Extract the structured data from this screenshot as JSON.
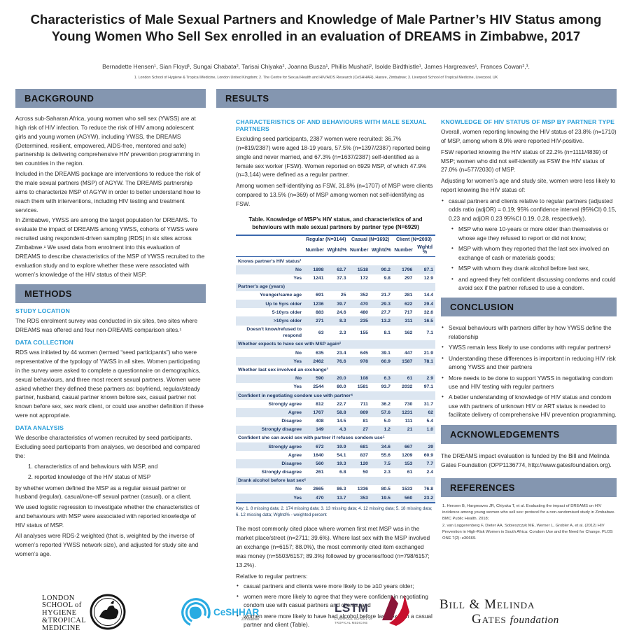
{
  "colors": {
    "section_bar": "#8496B0",
    "accent_heading": "#2C9FD9",
    "table_text": "#1F3864",
    "table_stripe": "#DCE6F1",
    "table_border": "#3A67AD",
    "lstm_red": "#C8102E",
    "ceshhar_blue": "#29ABE2"
  },
  "title": "Characteristics of Male Sexual Partners and Knowledge of Male Partner’s HIV Status among Young Women Who Sell Sex enrolled in an evaluation of DREAMS in Zimbabwe, 2017",
  "authors": "Bernadette Hensen¹, Sian Floyd¹, Sungai Chabata², Tarisai Chiyaka², Joanna Busza¹, Phillis Mushati², Isolde Birdthistle¹, James Hargreaves¹, Frances Cowan²,³.",
  "affiliations": "1. London School of Hygiene  & Tropical Medicine, London United Kingdom; 2. The Centre for Sexual Health and HIV/AIDS Research (CeSHHAR), Harare, Zimbabwe; 3. Liverpool School of Tropical Medicine, Liverpool, UK",
  "background": {
    "heading": "BACKGROUND",
    "paragraphs": [
      "Across sub-Saharan Africa, young women who sell sex (YWSS) are at high risk of HIV infection. To reduce the risk of HIV among adolescent girls and young women (AGYW), including YWSS, the DREAMS (Determined, resilient, empowered, AIDS-free, mentored and safe) partnership is delivering comprehensive HIV prevention programming in ten countries in the region.",
      "Included in the DREAMS package are interventions to reduce the risk of the male sexual partners (MSP) of AGYW. The DREAMS partnership aims to characterize MSP of AGYW in order to better understand how to reach them with interventions, including HIV testing and treatment services.",
      "In Zimbabwe, YWSS are among the target population for DREAMS. To evaluate the impact of DREAMS among YWSS, cohorts of YWSS were recruited using respondent-driven sampling (RDS) in six sites across Zimbabwe.¹ We used data from enrolment into this evaluation of DREAMS to describe characteristics of the MSP of YWSS recruited to the evaluation study and to explore whether these were associated with women’s knowledge of the HIV status of their MSP."
    ]
  },
  "methods": {
    "heading": "METHODS",
    "study_location_label": "STUDY LOCATION",
    "study_location": "The RDS enrolment survey was conducted in six sites, two sites where DREAMS was offered and four non-DREAMS comparison sites.¹",
    "data_collection_label": "DATA COLLECTION",
    "data_collection": "RDS was initiated by 44 women (termed “seed participants”) who were representative of the typology of YWSS in all sites. Women participating in the survey were asked to complete a questionnaire on demographics, sexual behaviours, and three most recent sexual partners. Women were asked whether they defined these partners as: boyfriend, regular/steady partner, husband, casual partner known before sex, casual partner not known before sex, sex work client, or could use another definition if these were not appropriate.",
    "data_analysis_label": "DATA ANALYSIS",
    "data_analysis_intro": "We describe characteristics of women recruited by seed participants. Excluding seed participants from analyses, we described and compared the:",
    "numbered": [
      "1.  characteristics of and behaviours with MSP, and",
      "2.  reported knowledge of the HIV status of MSP"
    ],
    "data_analysis_rest": [
      "by whether women defined the MSP as a regular sexual partner or husband (regular), casual/one-off sexual partner (casual), or a client.",
      "We used logistic regression to investigate whether the characteristics of and behaviours with MSP were associated with reported knowledge of HIV status of MSP.",
      "All analyses were RDS-2 weighted (that is, weighted by the inverse of women’s reported YWSS network size), and adjusted for study site and women’s age."
    ]
  },
  "results": {
    "heading": "RESULTS",
    "characteristics": {
      "heading": "CHARACTERISTICS OF AND BEHAVIOURS WITH MALE SEXUAL PARTNERS",
      "paragraphs": [
        "Excluding seed participants, 2387 women were recruited: 36.7% (n=819/2387) were aged 18-19 years, 57.5% (n=1397/2387) reported being single and never married, and 67.3% (n=1637/2387) self-identified as a female sex worker (FSW). Women reported on 6929 MSP, of which 47.9% (n=3,144) were defined as a regular partner.",
        "Among women self-identifying as FSW, 31.8% (n=1707) of MSP were clients compared to 13.5% (n=369) of MSP among women not self-identifying as FSW."
      ]
    },
    "table": {
      "title": "Table. Knowledge of MSP’s HIV status, and characteristics of and behaviours with male sexual partners by partner type (N=6929)",
      "groups": [
        "Regular (N=3144)",
        "Casual (N=1692)",
        "Client (N=2093)"
      ],
      "cols": [
        "Number",
        "Wghtd%",
        "Number",
        "Wghtd%",
        "Number",
        "Wghtd %"
      ],
      "rows": [
        {
          "t": "cat",
          "label": "Knows partner's HIV status¹"
        },
        {
          "t": "row",
          "label": "No",
          "v": [
            "1898",
            "62.7",
            "1518",
            "90.2",
            "1796",
            "87.1"
          ]
        },
        {
          "t": "row",
          "label": "Yes",
          "v": [
            "1241",
            "37.3",
            "172",
            "9.8",
            "297",
            "12.9"
          ]
        },
        {
          "t": "cat",
          "label": "Partner's age (years)"
        },
        {
          "t": "row",
          "label": "Younger/same age",
          "v": [
            "691",
            "25",
            "352",
            "21.7",
            "281",
            "14.4"
          ]
        },
        {
          "t": "row",
          "label": "Up to 5yrs older",
          "v": [
            "1236",
            "39.7",
            "470",
            "29.3",
            "622",
            "29.4"
          ]
        },
        {
          "t": "row",
          "label": "5-10yrs older",
          "v": [
            "883",
            "24.6",
            "480",
            "27.7",
            "717",
            "32.6"
          ]
        },
        {
          "t": "row",
          "label": ">10yrs older",
          "v": [
            "271",
            "8.3",
            "235",
            "13.2",
            "311",
            "16.5"
          ]
        },
        {
          "t": "row",
          "label": "Doesn't know/refused to respond",
          "v": [
            "63",
            "2.3",
            "155",
            "8.1",
            "162",
            "7.1"
          ]
        },
        {
          "t": "cat",
          "label": "Whether expects to have sex with MSP again²"
        },
        {
          "t": "row",
          "label": "No",
          "v": [
            "635",
            "23.4",
            "645",
            "39.1",
            "447",
            "21.9"
          ]
        },
        {
          "t": "row",
          "label": "Yes",
          "v": [
            "2462",
            "76.6",
            "978",
            "60.9",
            "1587",
            "78.1"
          ]
        },
        {
          "t": "cat",
          "label": "Whether last sex involved an exchange³"
        },
        {
          "t": "row",
          "label": "No",
          "v": [
            "590",
            "20.0",
            "108",
            "6.3",
            "61",
            "2.9"
          ]
        },
        {
          "t": "row",
          "label": "Yes",
          "v": [
            "2544",
            "80.0",
            "1581",
            "93.7",
            "2032",
            "97.1"
          ]
        },
        {
          "t": "cat",
          "label": "Confident in negotiating condom use with partner⁴"
        },
        {
          "t": "row",
          "label": "Strongly agree",
          "v": [
            "812",
            "22.7",
            "711",
            "36.2",
            "730",
            "31.7"
          ]
        },
        {
          "t": "row",
          "label": "Agree",
          "v": [
            "1767",
            "58.8",
            "869",
            "57.6",
            "1231",
            "62"
          ]
        },
        {
          "t": "row",
          "label": "Disagree",
          "v": [
            "408",
            "14.5",
            "81",
            "5.0",
            "111",
            "5.4"
          ]
        },
        {
          "t": "row",
          "label": "Strongly disagree",
          "v": [
            "149",
            "4.3",
            "27",
            "1.2",
            "21",
            "1.0"
          ]
        },
        {
          "t": "cat",
          "label": "Confident she can avoid sex with partner if refuses condom use⁵"
        },
        {
          "t": "row",
          "label": "Strongly agree",
          "v": [
            "672",
            "19.9",
            "681",
            "34.6",
            "667",
            "29"
          ]
        },
        {
          "t": "row",
          "label": "Agree",
          "v": [
            "1640",
            "54.1",
            "837",
            "55.6",
            "1209",
            "60.9"
          ]
        },
        {
          "t": "row",
          "label": "Disagree",
          "v": [
            "560",
            "19.3",
            "120",
            "7.5",
            "153",
            "7.7"
          ]
        },
        {
          "t": "row",
          "label": "Strongly disagree",
          "v": [
            "261",
            "6.8",
            "50",
            "2.3",
            "61",
            "2.4"
          ]
        },
        {
          "t": "cat",
          "label": "Drank alcohol before last sex⁶"
        },
        {
          "t": "row",
          "label": "No",
          "v": [
            "2665",
            "86.3",
            "1336",
            "80.5",
            "1533",
            "76.8"
          ]
        },
        {
          "t": "row",
          "label": "Yes",
          "v": [
            "470",
            "13.7",
            "353",
            "19.5",
            "560",
            "23.2"
          ]
        }
      ],
      "key": "Key: 1. 8 missing data; 2. 174 missing data; 3. 13 missing data; 4. 12 missing data; 5. 18 missing data; 6. 12 missing data; Wghtd% - weighted percent"
    },
    "post_table_paragraph": "The most commonly cited place where women first met MSP was in the market place/street (n=2711; 39.6%). Where last sex with the MSP involved an exchange (n=6157; 88.0%), the most commonly cited item exchanged was money (n=5503/6157; 89.3%) followed by groceries/food (n=798/6157; 13.2%).",
    "relative_label": "Relative to regular partners:",
    "relative_bullets": [
      "casual partners and clients were more likely to be ≥10 years older;",
      "women were more likely to agree that they were confident in negotiating condom use with casual partners and clients, and",
      "women were more likely to have had alcohol before last sex with a casual partner and client (Table)."
    ],
    "knowledge": {
      "heading": "KNOWLEDGE OF HIV STATUS OF MSP BY PARTNER TYPE",
      "paragraphs": [
        "Overall, women reporting knowing the HIV status of 23.8% (n=1710) of MSP, among whom 8.9% were reported HIV-positive.",
        "FSW reported knowing the HIV status of 22.2% (n=1111/4839) of MSP; women who did not self-identify as FSW the HIV status of 27.0% (n=577/2030) of MSP.",
        "Adjusting for women’s age and study site, women were less likely to report knowing the HIV status of:"
      ],
      "bullets": [
        "casual partners and clients relative to regular partners (adjusted odds ratio (adjOR) = 0.19; 95% confidence interval (95%CI) 0.15, 0.23 and adjOR 0.23 95%CI 0.19, 0.28, respectively)."
      ],
      "sub_bullets": [
        "MSP who were 10-years or more older than themselves or whose age they refused to report or did not know;",
        "MSP with whom they reported that the last sex involved an exchange of cash or materials goods;",
        "MSP with whom they drank alcohol before last sex,",
        "and agreed they felt confident discussing condoms and could avoid sex if the partner refused to use a condom."
      ]
    }
  },
  "conclusion": {
    "heading": "CONCLUSION",
    "bullets": [
      "Sexual behaviours with partners differ by how YWSS define the relationship",
      "YWSS remain less likely to use condoms with regular partners²",
      "Understanding these differences is important in reducing HIV risk among YWSS and their partners",
      "More needs to be done to support YWSS in negotiating condom use and HIV testing with regular partners",
      "A better understanding of knowledge of HIV status and condom use with partners of unknown HIV or ART status is needed to facilitate delivery of comprehensive HIV prevention programming."
    ]
  },
  "acknowledgements": {
    "heading": "ACKNOWLEDGEMENTS",
    "text": "The DREAMS impact evaluation is funded by the Bill and Melinda Gates Foundation (OPP1136774, http://www.gatesfoundation.org)."
  },
  "references": {
    "heading": "REFERENCES",
    "items": [
      "1. Hensen B, Hargreaves JR, Chiyaka T, et al. Evaluating the impact of DREAMS on HIV incidence among young women who sell sex: protocol for a non-randomised study in Zimbabwe. BMC Public Health. 2018;",
      "2. van Loggerenberg F, Dieter AA, Sobieszczyk ME, Werner L, Grobler A, et al. (2012) HIV Prevention in High-Risk Women in South Africa: Condom Use and the Need for Change. PLOS ONE 7(2): e30669."
    ]
  },
  "logos": {
    "lshtm": {
      "lines": [
        "LONDON",
        "SCHOOL of",
        "HYGIENE",
        "&TROPICAL",
        "MEDICINE"
      ]
    },
    "ceshhar": {
      "name": "CeSHHAR",
      "sub": "Zimbabwe"
    },
    "lstm": {
      "name": "LSTM",
      "sub": "LIVERPOOL SCHOOL OF TROPICAL MEDICINE"
    },
    "gates": {
      "line1": "Bill & Melinda",
      "line2": "Gates",
      "line2b": "foundation"
    }
  }
}
